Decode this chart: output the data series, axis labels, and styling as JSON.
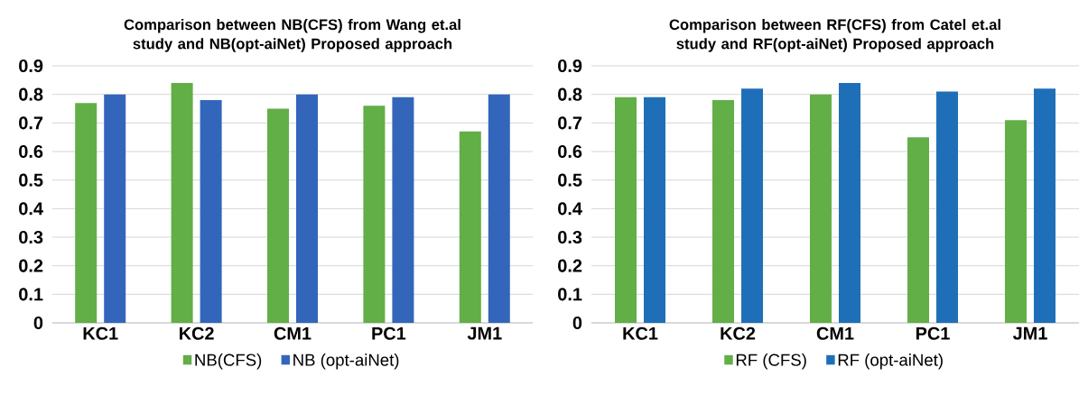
{
  "chart_data": [
    {
      "type": "bar",
      "title": "Comparison between NB(CFS) from Wang et.al study and NB(opt-aiNet) Proposed approach",
      "categories": [
        "KC1",
        "KC2",
        "CM1",
        "PC1",
        "JM1"
      ],
      "series": [
        {
          "name": "NB(CFS)",
          "color": "#62ae47",
          "values": [
            0.77,
            0.84,
            0.75,
            0.76,
            0.67
          ]
        },
        {
          "name": "NB (opt-aiNet)",
          "color": "#3366bb",
          "values": [
            0.8,
            0.78,
            0.8,
            0.79,
            0.8
          ]
        }
      ],
      "ylim": [
        0,
        0.9
      ],
      "yticks": [
        0,
        0.1,
        0.2,
        0.3,
        0.4,
        0.5,
        0.6,
        0.7,
        0.8,
        0.9
      ],
      "grid": "y",
      "legend": "bottom"
    },
    {
      "type": "bar",
      "title": "Comparison between RF(CFS) from Catel et.al study and RF(opt-aiNet) Proposed approach",
      "categories": [
        "KC1",
        "KC2",
        "CM1",
        "PC1",
        "JM1"
      ],
      "series": [
        {
          "name": "RF (CFS)",
          "color": "#62ae47",
          "values": [
            0.79,
            0.78,
            0.8,
            0.65,
            0.71
          ]
        },
        {
          "name": "RF (opt-aiNet)",
          "color": "#1f6fb8",
          "values": [
            0.79,
            0.82,
            0.84,
            0.81,
            0.82
          ]
        }
      ],
      "ylim": [
        0,
        0.9
      ],
      "yticks": [
        0,
        0.1,
        0.2,
        0.3,
        0.4,
        0.5,
        0.6,
        0.7,
        0.8,
        0.9
      ],
      "grid": "y",
      "legend": "bottom"
    }
  ]
}
